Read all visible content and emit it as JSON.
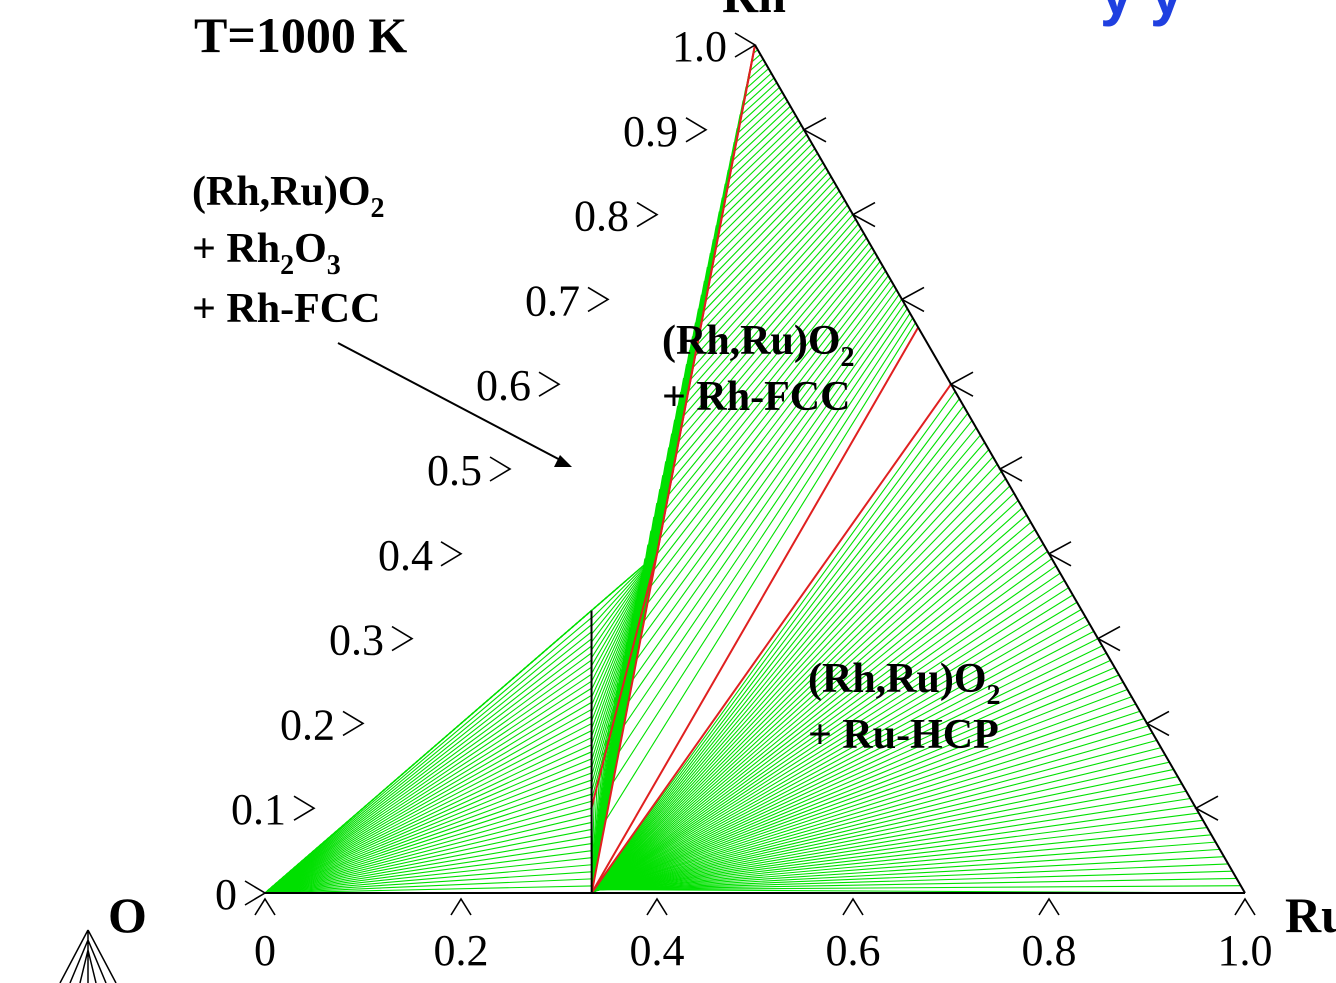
{
  "chart_data": {
    "type": "ternary",
    "temperature_label": "T=1000 K",
    "vertices": {
      "left": "O",
      "top": "Rh",
      "right": "Ru"
    },
    "left_axis_ticks": [
      "0",
      "0.1",
      "0.2",
      "0.3",
      "0.4",
      "0.5",
      "0.6",
      "0.7",
      "0.8",
      "0.9",
      "1.0"
    ],
    "bottom_axis_ticks": [
      "0",
      "0.2",
      "0.4",
      "0.6",
      "0.8",
      "1.0"
    ],
    "regions": [
      {
        "lines": [
          "(Rh,Ru)O",
          "+ Rh",
          "O",
          "+ Rh-FCC"
        ],
        "sub1": "2",
        "sub2a": "2",
        "sub2b": "3"
      },
      {
        "lines": [
          "(Rh,Ru)O",
          "+ Rh-FCC"
        ],
        "sub1": "2"
      },
      {
        "lines": [
          "(Rh,Ru)O",
          "+ Ru-HCP"
        ],
        "sub1": "2"
      }
    ],
    "red_boundaries": [
      {
        "from": [
          0.4,
          0.2
        ],
        "to": [
          1.0,
          0.5
        ]
      },
      {
        "from": [
          0.1,
          0.283
        ],
        "to": [
          0.4,
          0.2
        ]
      },
      {
        "from": [
          0.0,
          0.333
        ],
        "to": [
          1.0,
          0.5
        ]
      },
      {
        "from": [
          0.0,
          0.333
        ],
        "to": [
          0.6,
          0.667
        ]
      },
      {
        "from": [
          0.0,
          0.333
        ],
        "to": [
          0.6,
          0.7
        ]
      }
    ],
    "black_boundary": {
      "from": [
        0.333,
        0.167
      ],
      "to": [
        0.0,
        0.333
      ]
    },
    "colors": {
      "tie_line": "#00e000",
      "boundary": "#e02020",
      "axis": "#000000",
      "blue_heading": "#1f3fe0"
    }
  }
}
